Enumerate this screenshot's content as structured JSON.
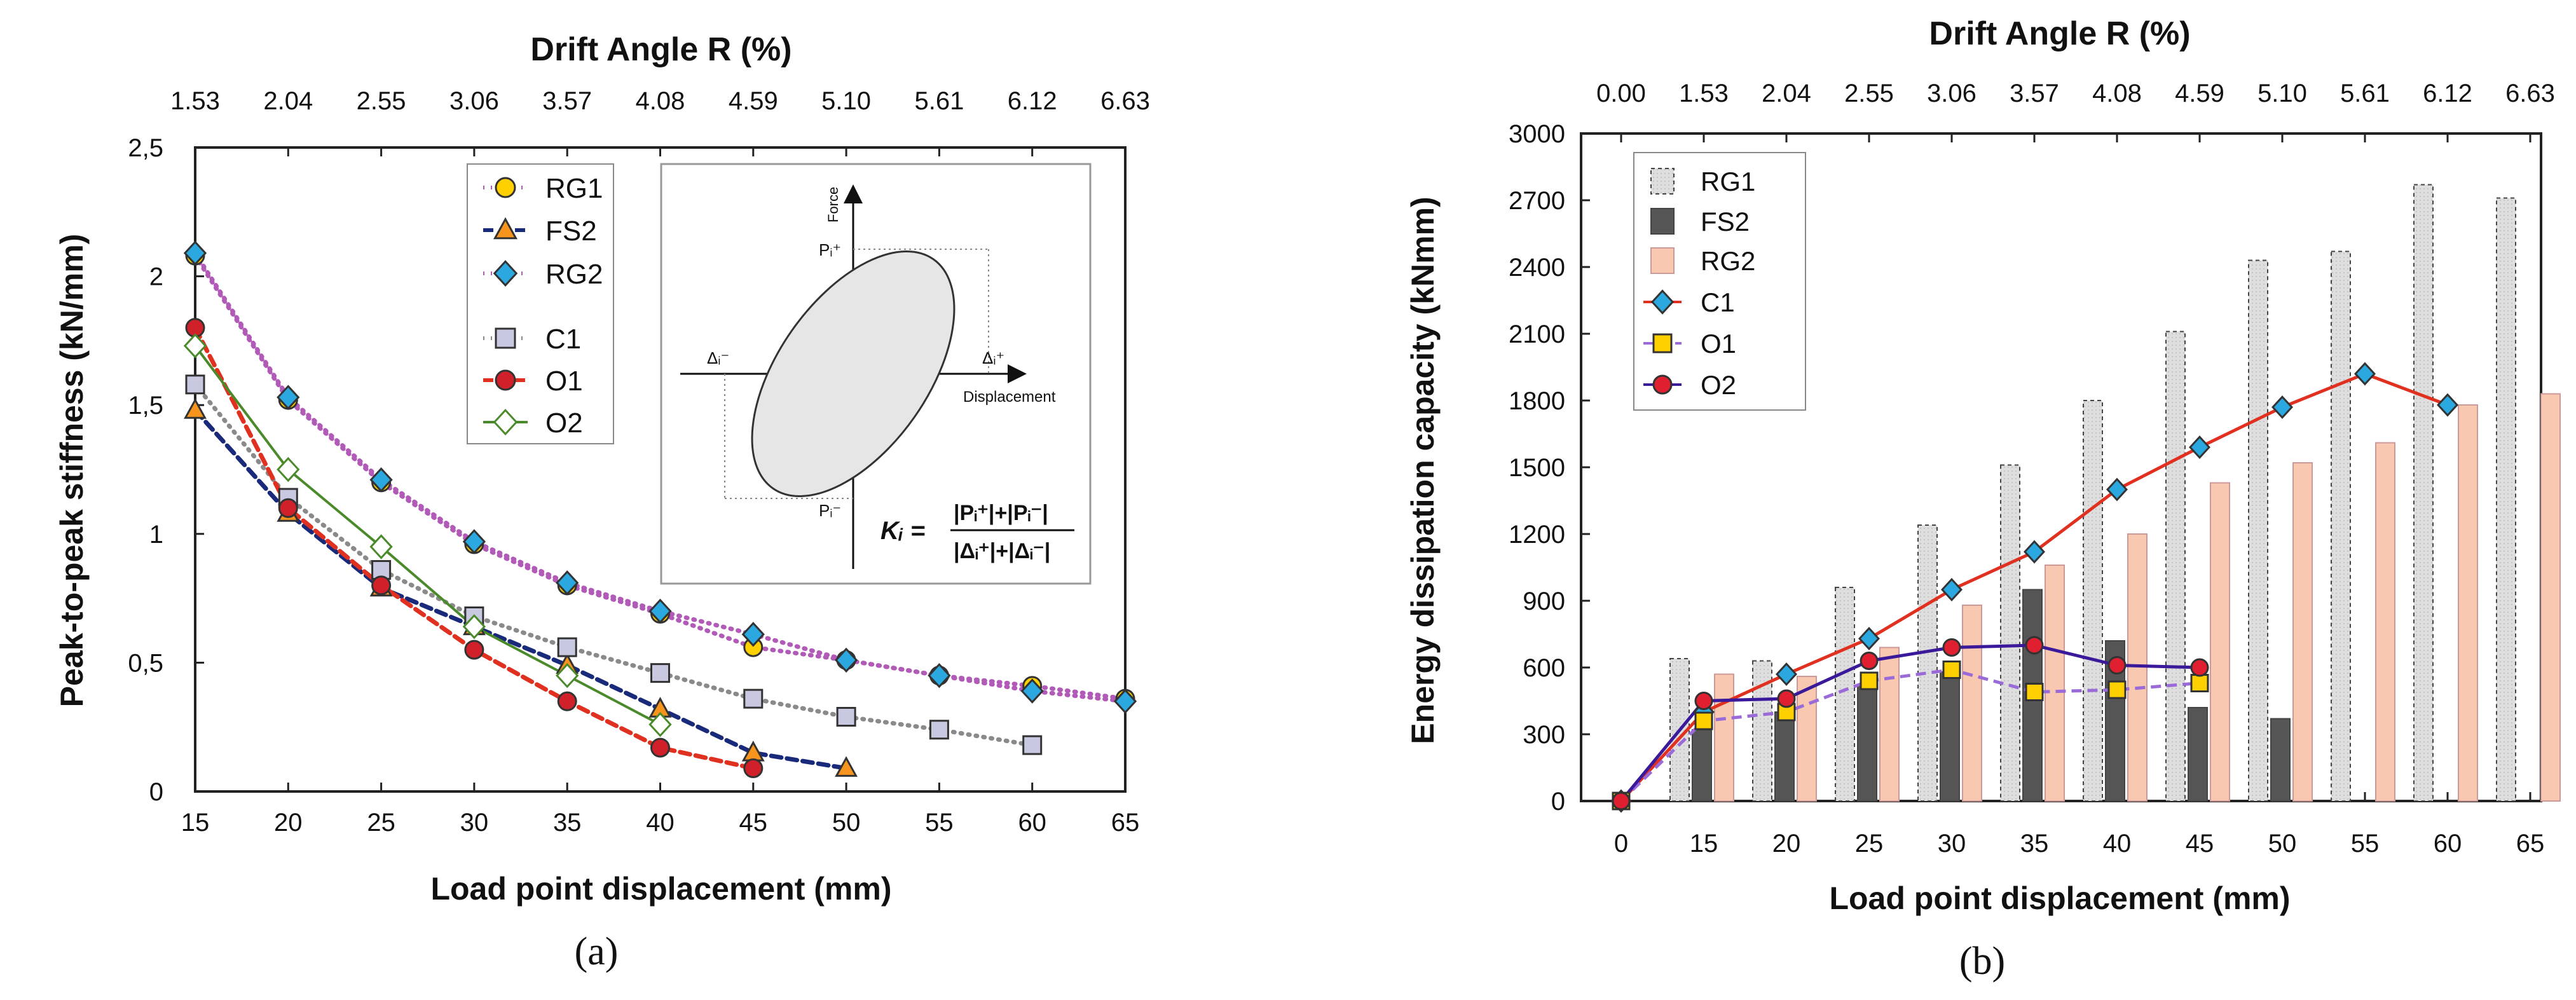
{
  "chart_data": [
    {
      "type": "line",
      "panel_label": "(a)",
      "top_axis_title": "Drift Angle R (%)",
      "top_ticks": [
        "1.53",
        "2.04",
        "2.55",
        "3.06",
        "3.57",
        "4.08",
        "4.59",
        "5.10",
        "5.61",
        "6.12",
        "6.63"
      ],
      "xlabel": "Load point displacement (mm)",
      "ylabel": "Peak-to-peak stiffness (kN/mm)",
      "x_ticks": [
        "15",
        "20",
        "25",
        "30",
        "35",
        "40",
        "45",
        "50",
        "55",
        "60",
        "65"
      ],
      "y_ticks": [
        "0",
        "0,5",
        "1",
        "1,5",
        "2",
        "2,5"
      ],
      "xlim": [
        15,
        65
      ],
      "ylim": [
        0,
        2.5
      ],
      "series": [
        {
          "name": "RG1",
          "color": "#ffd000",
          "marker": "circle",
          "line_color": "#b15ab8",
          "line_style": "dotted",
          "x": [
            15,
            20,
            25,
            30,
            35,
            40,
            45,
            50,
            55,
            60,
            65
          ],
          "values": [
            2.08,
            1.52,
            1.2,
            0.96,
            0.8,
            0.69,
            0.56,
            0.51,
            0.45,
            0.41,
            0.36
          ]
        },
        {
          "name": "FS2",
          "color": "#f7941d",
          "marker": "triangle",
          "line_color": "#1a2a7a",
          "line_style": "dashed",
          "x": [
            15,
            20,
            25,
            30,
            35,
            40,
            45,
            50
          ],
          "values": [
            1.48,
            1.08,
            0.79,
            0.64,
            0.49,
            0.32,
            0.15,
            0.09
          ]
        },
        {
          "name": "RG2",
          "color": "#2ba8e0",
          "marker": "diamond",
          "line_color": "#b15ab8",
          "line_style": "dotted",
          "x": [
            15,
            20,
            25,
            30,
            35,
            40,
            45,
            50,
            55,
            60,
            65
          ],
          "values": [
            2.09,
            1.53,
            1.21,
            0.97,
            0.81,
            0.7,
            0.61,
            0.51,
            0.45,
            0.39,
            0.35
          ]
        },
        {
          "name": "C1",
          "color": "#c8c8e0",
          "marker": "square",
          "line_color": "#8a8a8a",
          "line_style": "dotted",
          "x": [
            15,
            20,
            25,
            30,
            35,
            40,
            45,
            50,
            55,
            60
          ],
          "values": [
            1.58,
            1.14,
            0.86,
            0.68,
            0.56,
            0.46,
            0.36,
            0.29,
            0.24,
            0.18
          ]
        },
        {
          "name": "O1",
          "color": "#d0202a",
          "marker": "circle",
          "line_color": "#e03020",
          "line_style": "dashed",
          "x": [
            15,
            20,
            25,
            30,
            35,
            40,
            45
          ],
          "values": [
            1.8,
            1.1,
            0.8,
            0.55,
            0.35,
            0.17,
            0.09
          ]
        },
        {
          "name": "O2",
          "color": "#ffffff",
          "marker": "diamond-open",
          "line_color": "#4a8a2a",
          "line_style": "solid",
          "x": [
            15,
            20,
            25,
            30,
            35,
            40
          ],
          "values": [
            1.73,
            1.25,
            0.95,
            0.64,
            0.45,
            0.26
          ]
        }
      ],
      "inset": {
        "force_label": "Force",
        "displacement_label": "Displacement",
        "p_plus": "Pᵢ⁺",
        "p_minus": "Pᵢ⁻",
        "d_minus": "Δᵢ⁻",
        "d_plus": "Δᵢ⁺",
        "formula_lhs": "Kᵢ =",
        "formula_num": "|Pᵢ⁺|+|Pᵢ⁻|",
        "formula_den": "|Δᵢ⁺|+|Δᵢ⁻|"
      }
    },
    {
      "type": "bar+line",
      "panel_label": "(b)",
      "top_axis_title": "Drift Angle R (%)",
      "top_ticks": [
        "0.00",
        "1.53",
        "2.04",
        "2.55",
        "3.06",
        "3.57",
        "4.08",
        "4.59",
        "5.10",
        "5.61",
        "6.12",
        "6.63"
      ],
      "xlabel": "Load point displacement (mm)",
      "ylabel": "Energy dissipation capacity (kNmm)",
      "x_ticks": [
        "0",
        "15",
        "20",
        "25",
        "30",
        "35",
        "40",
        "45",
        "50",
        "55",
        "60",
        "65"
      ],
      "y_ticks": [
        "0",
        "300",
        "600",
        "900",
        "1200",
        "1500",
        "1800",
        "2100",
        "2400",
        "2700",
        "3000"
      ],
      "ylim": [
        0,
        3000
      ],
      "categories": [
        "15",
        "20",
        "25",
        "30",
        "35",
        "40",
        "45",
        "50",
        "55",
        "60",
        "65"
      ],
      "bars": [
        {
          "name": "RG1",
          "color": "#d8d8d8",
          "values": [
            640,
            630,
            960,
            1240,
            1510,
            1800,
            2110,
            2430,
            2470,
            2770,
            2710
          ]
        },
        {
          "name": "FS2",
          "color": "#555555",
          "values": [
            320,
            400,
            520,
            580,
            950,
            720,
            420,
            370,
            null,
            null,
            null
          ]
        },
        {
          "name": "RG2",
          "color": "#f8c8b0",
          "values": [
            570,
            560,
            690,
            880,
            1060,
            1200,
            1430,
            1520,
            1610,
            1780,
            1830
          ]
        }
      ],
      "lines": [
        {
          "name": "C1",
          "color": "#2ba8e0",
          "marker": "diamond",
          "line_color": "#e03020",
          "line_style": "solid",
          "x": [
            0,
            15,
            20,
            25,
            30,
            35,
            40,
            45,
            50,
            55,
            60
          ],
          "values": [
            0,
            400,
            570,
            730,
            950,
            1120,
            1400,
            1590,
            1770,
            1920,
            1780
          ]
        },
        {
          "name": "O1",
          "color": "#ffd000",
          "marker": "square",
          "line_color": "#9a6ad8",
          "line_style": "dashed",
          "x": [
            0,
            15,
            20,
            25,
            30,
            35,
            40,
            45
          ],
          "values": [
            0,
            360,
            400,
            540,
            590,
            490,
            500,
            530
          ]
        },
        {
          "name": "O2",
          "color": "#e02030",
          "marker": "circle",
          "line_color": "#3a1a9a",
          "line_style": "solid",
          "x": [
            0,
            15,
            20,
            25,
            30,
            35,
            40,
            45
          ],
          "values": [
            0,
            450,
            460,
            630,
            690,
            700,
            610,
            600
          ]
        }
      ]
    }
  ]
}
